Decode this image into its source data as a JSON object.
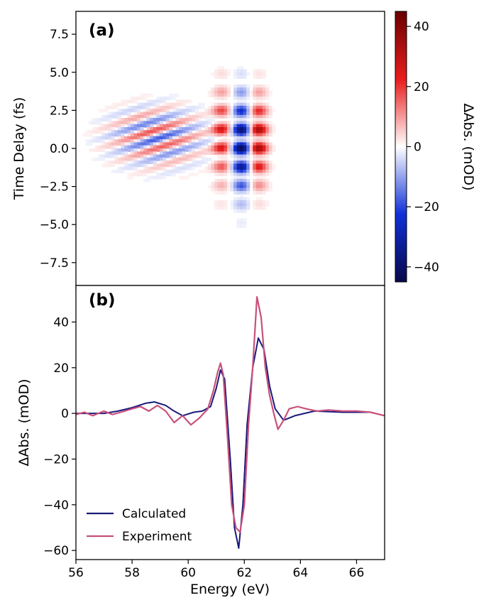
{
  "chart_data": [
    {
      "id": "a",
      "type": "heatmap",
      "panel_label": "(a)",
      "xlabel": "Energy (eV)",
      "ylabel": "Time Delay (fs)",
      "xlim": [
        56,
        67
      ],
      "ylim": [
        -9,
        9
      ],
      "yticks": [
        -7.5,
        -5.0,
        -2.5,
        0.0,
        2.5,
        5.0,
        7.5
      ],
      "ytick_labels": [
        "−7.5",
        "−5.0",
        "−2.5",
        "0.0",
        "2.5",
        "5.0",
        "7.5"
      ],
      "colorbar": {
        "label": "ΔAbs. (mOD)",
        "range": [
          -45,
          45
        ],
        "ticks": [
          -40,
          -20,
          0,
          20,
          40
        ],
        "tick_labels": [
          "−40",
          "−20",
          "0",
          "20",
          "40"
        ],
        "colors": [
          "#08084a",
          "#1030d8",
          "#ffffff",
          "#e81c1c",
          "#6a0000"
        ]
      },
      "features": [
        {
          "center_ev": 61.2,
          "delay_span": [
            -3,
            4.5
          ],
          "fringe_period_fs": 1.25,
          "amplitude": 26
        },
        {
          "center_ev": 61.9,
          "delay_span": [
            -3.5,
            4
          ],
          "fringe_period_fs": 1.25,
          "amplitude": -45
        },
        {
          "center_ev": 62.5,
          "delay_span": [
            -3,
            4
          ],
          "fringe_period_fs": 1.25,
          "amplitude": 38
        },
        {
          "center_ev": 58.9,
          "delay_span": [
            -1.5,
            3
          ],
          "fringe_period_fs": 1.25,
          "amplitude": 18
        }
      ]
    },
    {
      "id": "b",
      "type": "line",
      "panel_label": "(b)",
      "xlabel": "Energy (eV)",
      "ylabel": "ΔAbs. (mOD)",
      "xlim": [
        56,
        67
      ],
      "ylim": [
        -64,
        56
      ],
      "xticks": [
        56,
        58,
        60,
        62,
        64,
        66
      ],
      "xtick_labels": [
        "56",
        "58",
        "60",
        "62",
        "64",
        "66"
      ],
      "yticks": [
        -60,
        -40,
        -20,
        0,
        20,
        40
      ],
      "ytick_labels": [
        "−60",
        "−40",
        "−20",
        "0",
        "20",
        "40"
      ],
      "legend_position": "bottom-left",
      "series": [
        {
          "name": "Calculated",
          "color": "#1a1a7a",
          "x": [
            56,
            57,
            57.5,
            58,
            58.5,
            58.8,
            59.2,
            59.5,
            59.8,
            60.2,
            60.5,
            60.8,
            61.0,
            61.15,
            61.3,
            61.5,
            61.65,
            61.8,
            61.95,
            62.1,
            62.3,
            62.5,
            62.7,
            62.9,
            63.1,
            63.4,
            63.8,
            64.5,
            65.5,
            66.5
          ],
          "y": [
            0,
            0,
            1,
            2.5,
            4.5,
            5,
            3.5,
            1,
            -1,
            0.5,
            1,
            3,
            11,
            19,
            15,
            -20,
            -50,
            -59,
            -40,
            -5,
            20,
            33,
            28,
            12,
            2,
            -3,
            -1,
            1,
            0.5,
            0.5
          ]
        },
        {
          "name": "Experiment",
          "color": "#c8507c",
          "x": [
            56,
            56.3,
            56.6,
            57,
            57.3,
            57.6,
            58,
            58.3,
            58.6,
            58.9,
            59.2,
            59.5,
            59.8,
            60.1,
            60.4,
            60.7,
            60.9,
            61.05,
            61.15,
            61.25,
            61.4,
            61.55,
            61.7,
            61.85,
            62.0,
            62.15,
            62.3,
            62.45,
            62.6,
            62.75,
            62.9,
            63.05,
            63.2,
            63.4,
            63.6,
            63.9,
            64.2,
            64.6,
            65,
            65.5,
            66,
            66.5,
            67
          ],
          "y": [
            -0.5,
            0.5,
            -1,
            1,
            -0.5,
            0.5,
            2,
            3,
            1,
            3.5,
            1,
            -4,
            -1,
            -5,
            -2,
            2,
            10,
            18,
            22,
            17,
            -10,
            -40,
            -50,
            -52,
            -40,
            -5,
            20,
            51,
            42,
            20,
            8,
            0,
            -7,
            -3,
            2,
            3,
            2,
            1,
            1.5,
            1,
            1,
            0.5,
            -1
          ]
        }
      ]
    }
  ]
}
